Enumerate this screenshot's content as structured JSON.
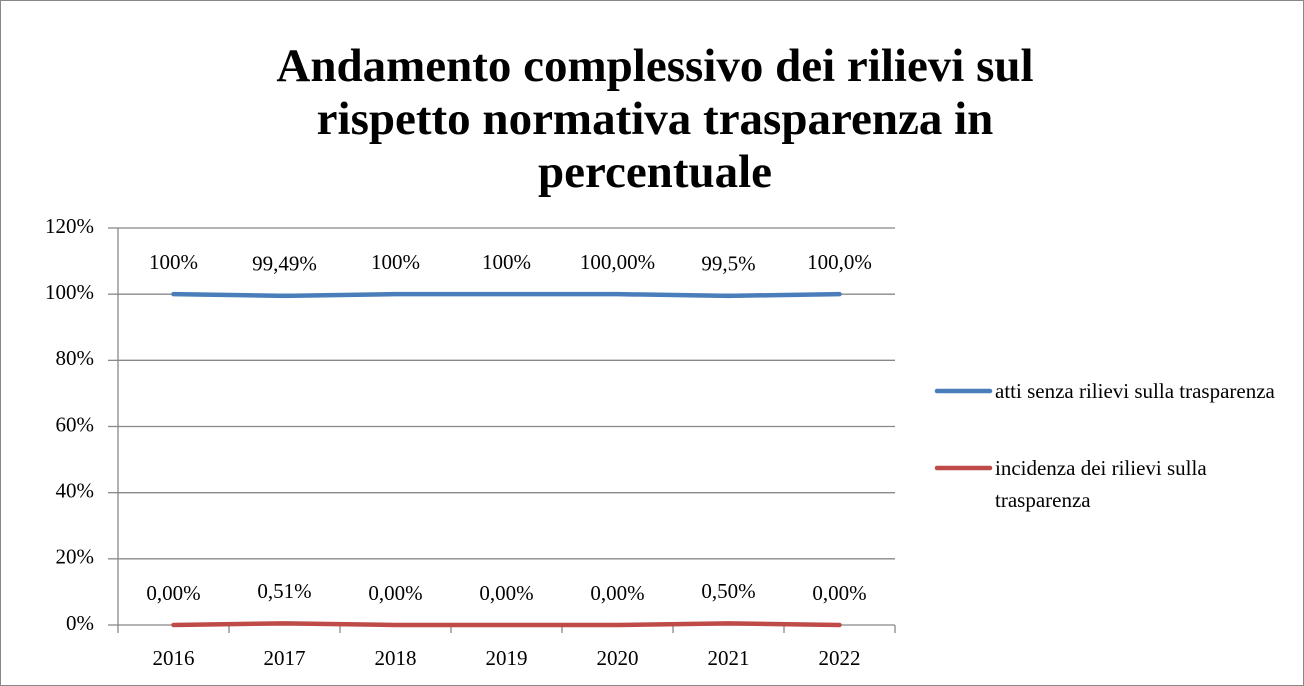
{
  "chart_data": {
    "type": "line",
    "title": "Andamento complessivo dei rilievi sul rispetto normativa trasparenza  in percentuale",
    "categories": [
      "2016",
      "2017",
      "2018",
      "2019",
      "2020",
      "2021",
      "2022"
    ],
    "series": [
      {
        "name": "atti senza rilievi sulla trasparenza",
        "color": "#4a7ebb",
        "values": [
          100,
          99.49,
          100,
          100,
          100,
          99.5,
          100
        ],
        "value_labels": [
          "100%",
          "99,49%",
          "100%",
          "100%",
          "100,00%",
          "99,5%",
          "100,0%"
        ]
      },
      {
        "name": "incidenza dei rilievi sulla trasparenza",
        "color": "#be4b48",
        "values": [
          0,
          0.51,
          0,
          0,
          0,
          0.5,
          0
        ],
        "value_labels": [
          "0,00%",
          "0,51%",
          "0,00%",
          "0,00%",
          "0,00%",
          "0,50%",
          "0,00%"
        ]
      }
    ],
    "ylim": [
      0,
      120
    ],
    "yticks": [
      {
        "value": 0,
        "label": "0%"
      },
      {
        "value": 20,
        "label": "20%"
      },
      {
        "value": 40,
        "label": "40%"
      },
      {
        "value": 60,
        "label": "60%"
      },
      {
        "value": 80,
        "label": "80%"
      },
      {
        "value": 100,
        "label": "100%"
      },
      {
        "value": 120,
        "label": "120%"
      }
    ],
    "grid": true,
    "legend": "right"
  }
}
